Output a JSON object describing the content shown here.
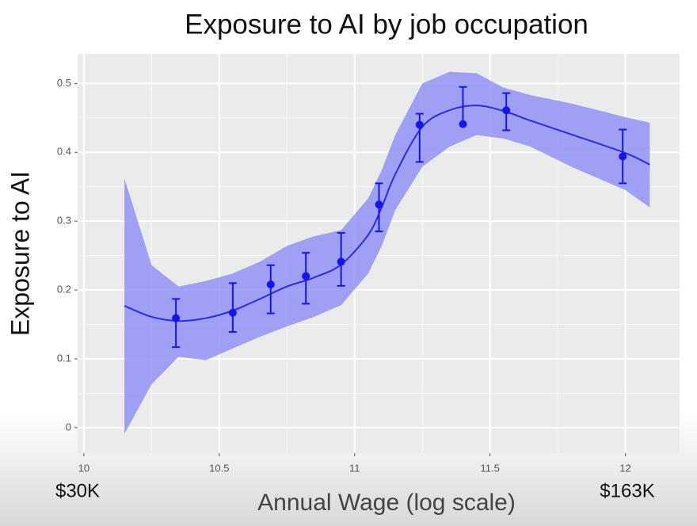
{
  "chart_data": {
    "type": "smooth-scatter",
    "title": "Exposure to AI by job occupation",
    "x_label": "Annual Wage (log scale)",
    "y_label": "Exposure to AI",
    "annotations": [
      "$30K",
      "$163K"
    ],
    "xlim": [
      9.977,
      12.2
    ],
    "ylim": [
      -0.037,
      0.543
    ],
    "xticks": [
      10,
      10.5,
      11,
      11.5,
      12
    ],
    "yticks": [
      0,
      0.1,
      0.2,
      0.3,
      0.4,
      0.5
    ],
    "grid": true,
    "minor_grid": true,
    "points": {
      "color": "#1414f0",
      "x": [
        10.34,
        10.55,
        10.69,
        10.82,
        10.95,
        11.09,
        11.24,
        11.4,
        11.56,
        11.99
      ],
      "values": [
        0.159,
        0.167,
        0.208,
        0.22,
        0.241,
        0.324,
        0.44,
        0.441,
        0.461,
        0.394
      ],
      "lower": [
        0.117,
        0.139,
        0.166,
        0.18,
        0.206,
        0.285,
        0.386,
        0.44,
        0.432,
        0.355
      ],
      "upper": [
        0.187,
        0.21,
        0.236,
        0.254,
        0.283,
        0.355,
        0.456,
        0.495,
        0.486,
        0.433
      ]
    },
    "smooth": {
      "color": "#2b2bea",
      "band_color": "#8c8cf5",
      "x": [
        10.15,
        10.25,
        10.35,
        10.45,
        10.55,
        10.65,
        10.75,
        10.85,
        10.95,
        11.05,
        11.1,
        11.15,
        11.25,
        11.35,
        11.45,
        11.55,
        11.65,
        11.8,
        12.0,
        12.09
      ],
      "values": [
        0.177,
        0.161,
        0.155,
        0.159,
        0.17,
        0.187,
        0.205,
        0.218,
        0.237,
        0.28,
        0.32,
        0.368,
        0.437,
        0.461,
        0.468,
        0.46,
        0.446,
        0.426,
        0.399,
        0.382
      ],
      "lower": [
        -0.009,
        0.063,
        0.103,
        0.098,
        0.115,
        0.132,
        0.147,
        0.161,
        0.178,
        0.224,
        0.264,
        0.316,
        0.379,
        0.408,
        0.425,
        0.42,
        0.408,
        0.379,
        0.345,
        0.32
      ],
      "upper": [
        0.362,
        0.236,
        0.205,
        0.213,
        0.224,
        0.241,
        0.264,
        0.278,
        0.287,
        0.333,
        0.374,
        0.425,
        0.5,
        0.517,
        0.515,
        0.494,
        0.483,
        0.471,
        0.451,
        0.443
      ]
    }
  }
}
